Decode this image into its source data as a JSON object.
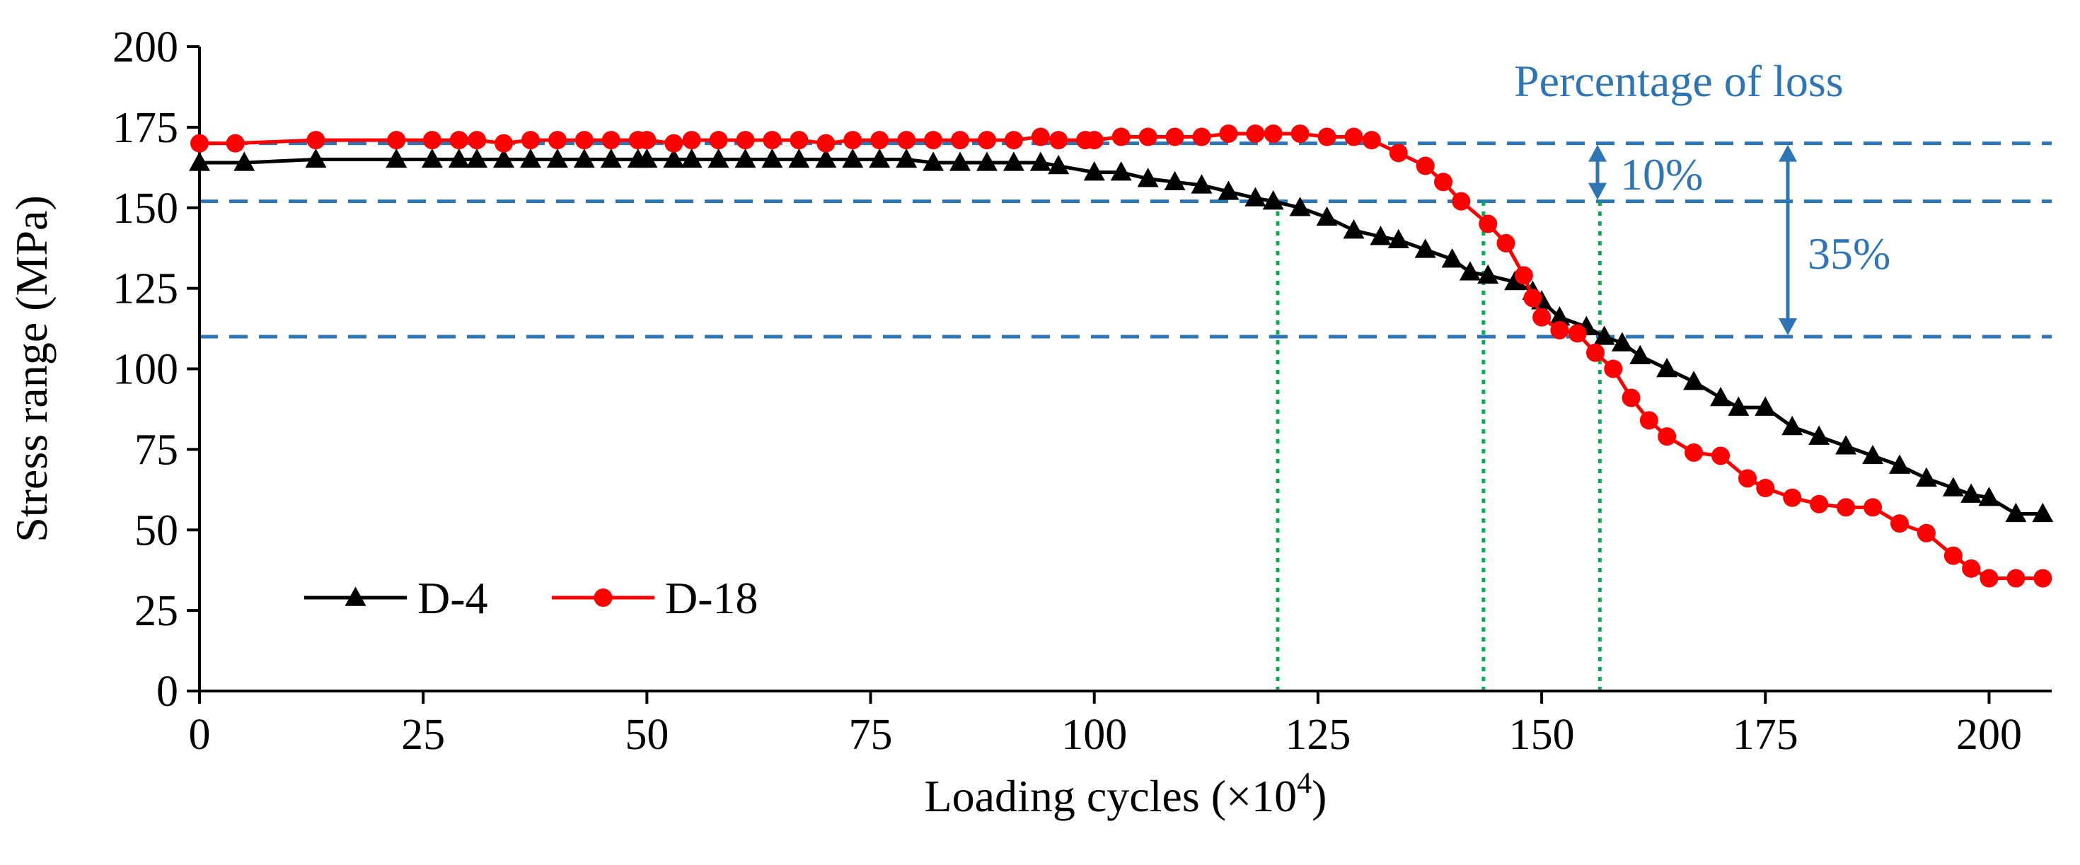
{
  "chart_data": {
    "type": "line",
    "xlabel": "Loading cycles (×10",
    "xlabel_exponent": "4",
    "xlabel_close": ")",
    "ylabel": "Stress range (MPa)",
    "xlim": [
      0,
      207
    ],
    "ylim": [
      0,
      200
    ],
    "x_ticks": [
      0,
      25,
      50,
      75,
      100,
      125,
      150,
      175,
      200
    ],
    "y_ticks": [
      0,
      25,
      50,
      75,
      100,
      125,
      150,
      175,
      200
    ],
    "grid": false,
    "legend_position": "bottom-left",
    "series": [
      {
        "name": "D-4",
        "color": "#000000",
        "marker": "triangle",
        "x": [
          0,
          5,
          13,
          22,
          26,
          29,
          31,
          34,
          37,
          40,
          43,
          46,
          49,
          50,
          53,
          55,
          58,
          61,
          64,
          67,
          70,
          73,
          76,
          79,
          82,
          85,
          88,
          91,
          94,
          96,
          100,
          103,
          106,
          109,
          112,
          115,
          118,
          120,
          123,
          126,
          129,
          132,
          134,
          137,
          140,
          142,
          144,
          147,
          149,
          150,
          152,
          155,
          157,
          159,
          161,
          164,
          167,
          170,
          172,
          175,
          178,
          181,
          184,
          187,
          190,
          193,
          196,
          198,
          200,
          203,
          206
        ],
        "y": [
          164,
          164,
          165,
          165,
          165,
          165,
          165,
          165,
          165,
          165,
          165,
          165,
          165,
          165,
          165,
          165,
          165,
          165,
          165,
          165,
          165,
          165,
          165,
          165,
          164,
          164,
          164,
          164,
          164,
          163,
          161,
          161,
          159,
          158,
          157,
          155,
          153,
          152,
          150,
          147,
          143,
          141,
          140,
          137,
          134,
          130,
          129,
          127,
          124,
          121,
          116,
          113,
          110,
          108,
          104,
          100,
          96,
          91,
          88,
          88,
          82,
          79,
          76,
          73,
          70,
          66,
          63,
          61,
          60,
          55,
          55
        ]
      },
      {
        "name": "D-18",
        "color": "#ff0000",
        "marker": "circle",
        "x": [
          0,
          4,
          13,
          22,
          26,
          29,
          31,
          34,
          37,
          40,
          43,
          46,
          49,
          50,
          53,
          55,
          58,
          61,
          64,
          67,
          70,
          73,
          76,
          79,
          82,
          85,
          88,
          91,
          94,
          96,
          99,
          100,
          103,
          106,
          109,
          112,
          115,
          118,
          120,
          123,
          126,
          129,
          131,
          134,
          137,
          139,
          141,
          144,
          146,
          148,
          149,
          150,
          152,
          154,
          156,
          158,
          160,
          162,
          164,
          167,
          170,
          173,
          175,
          178,
          181,
          184,
          187,
          190,
          193,
          196,
          198,
          200,
          203,
          206
        ],
        "y": [
          170,
          170,
          171,
          171,
          171,
          171,
          171,
          170,
          171,
          171,
          171,
          171,
          171,
          171,
          170,
          171,
          171,
          171,
          171,
          171,
          170,
          171,
          171,
          171,
          171,
          171,
          171,
          171,
          172,
          171,
          171,
          171,
          172,
          172,
          172,
          172,
          173,
          173,
          173,
          173,
          172,
          172,
          171,
          167,
          163,
          158,
          152,
          145,
          139,
          129,
          122,
          116,
          112,
          111,
          105,
          100,
          91,
          84,
          79,
          74,
          73,
          66,
          63,
          60,
          58,
          57,
          57,
          52,
          49,
          42,
          38,
          35,
          35,
          35
        ]
      }
    ],
    "reference_lines": {
      "horizontal": [
        170,
        152,
        110
      ],
      "vertical": [
        120.5,
        143.5,
        156.5
      ],
      "horizontal_color": "#2e75b6",
      "vertical_color": "#00b050"
    },
    "annotations": {
      "title": "Percentage of loss",
      "label_10": "10%",
      "label_35": "35%",
      "color": "#2e75b6"
    }
  }
}
